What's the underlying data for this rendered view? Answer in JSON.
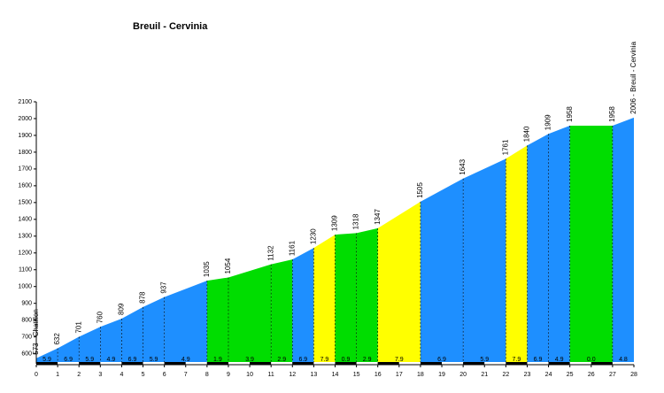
{
  "chart_data": {
    "type": "profile",
    "title": "Breuil - Cervinia",
    "x": [
      0,
      1,
      2,
      3,
      4,
      5,
      6,
      8,
      9,
      11,
      12,
      13,
      14,
      15,
      16,
      18,
      20,
      22,
      23,
      24,
      25,
      27,
      28
    ],
    "values": [
      573,
      632,
      701,
      760,
      809,
      878,
      937,
      1035,
      1054,
      1132,
      1161,
      1230,
      1309,
      1318,
      1347,
      1505,
      1643,
      1761,
      1840,
      1909,
      1958,
      1958,
      2006
    ],
    "value_labels": [
      "573 - Chatillon",
      "632",
      "701",
      "760",
      "809",
      "878",
      "937",
      "1035",
      "1054",
      "1132",
      "1161",
      "1230",
      "1309",
      "1318",
      "1347",
      "1505",
      "1643",
      "1761",
      "1840",
      "1909",
      "1958",
      "1958",
      "2006 - Breuil - Cervinia"
    ],
    "grades": [
      5.9,
      6.9,
      5.9,
      4.9,
      6.9,
      5.9,
      4.9,
      1.9,
      3.9,
      2.9,
      6.9,
      7.9,
      0.9,
      2.9,
      7.9,
      6.9,
      5.9,
      7.9,
      6.9,
      4.9,
      0,
      4.8
    ],
    "grade_labels": [
      "5.9",
      "6.9",
      "5.9",
      "4.9",
      "6.9",
      "5.9",
      "4.9",
      "1.9",
      "3.9",
      "2.9",
      "6.9",
      "7.9",
      "0.9",
      "2.9",
      "7.9",
      "6.9",
      "5.9",
      "7.9",
      "6.9",
      "4.9",
      "0.0",
      "4.8"
    ],
    "segment_colors": [
      "#1e8fff",
      "#1e8fff",
      "#1e8fff",
      "#1e8fff",
      "#1e8fff",
      "#1e8fff",
      "#1e8fff",
      "#00dd00",
      "#00dd00",
      "#00dd00",
      "#1e8fff",
      "#ffff00",
      "#00dd00",
      "#00dd00",
      "#ffff00",
      "#1e8fff",
      "#1e8fff",
      "#ffff00",
      "#1e8fff",
      "#1e8fff",
      "#00dd00",
      "#1e8fff"
    ],
    "xlim": [
      0,
      28
    ],
    "xticks": [
      0,
      1,
      2,
      3,
      4,
      5,
      6,
      7,
      8,
      9,
      10,
      11,
      12,
      13,
      14,
      15,
      16,
      17,
      18,
      19,
      20,
      21,
      22,
      23,
      24,
      25,
      26,
      27,
      28
    ],
    "ylim": [
      540,
      2100
    ],
    "yticks": [
      600,
      700,
      800,
      900,
      1000,
      1100,
      1200,
      1300,
      1400,
      1500,
      1600,
      1700,
      1800,
      1900,
      2000,
      2100
    ]
  }
}
